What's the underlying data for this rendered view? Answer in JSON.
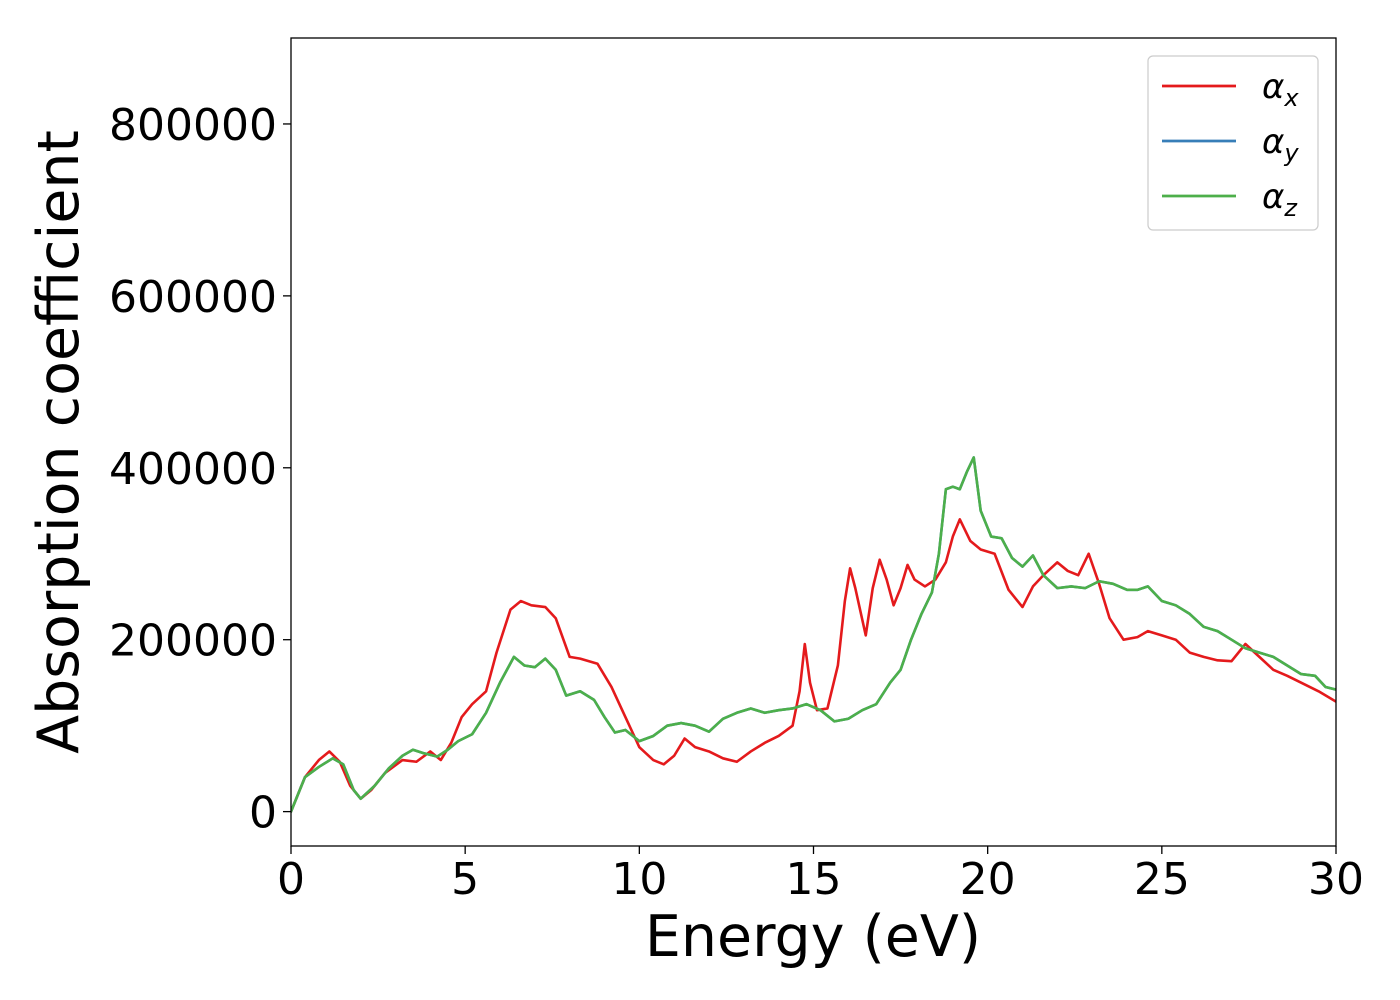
{
  "chart_data": {
    "type": "line",
    "title": "",
    "xlabel": "Energy (eV)",
    "ylabel": "Absorption coefficient",
    "xlim": [
      0,
      30
    ],
    "ylim": [
      -40000,
      900000
    ],
    "xticks": [
      0,
      5,
      10,
      15,
      20,
      25,
      30
    ],
    "xtick_labels": [
      "0",
      "5",
      "10",
      "15",
      "20",
      "25",
      "30"
    ],
    "yticks": [
      0,
      200000,
      400000,
      600000,
      800000
    ],
    "ytick_labels": [
      "0",
      "200000",
      "400000",
      "600000",
      "800000"
    ],
    "grid": false,
    "legend_position": "top-right",
    "series": [
      {
        "name": "α",
        "subscript": "x",
        "color": "#e41a1c",
        "x": [
          0,
          0.4,
          0.8,
          1.1,
          1.4,
          1.7,
          2.0,
          2.3,
          2.7,
          3.2,
          3.6,
          4.0,
          4.3,
          4.6,
          4.9,
          5.2,
          5.6,
          5.9,
          6.3,
          6.6,
          6.9,
          7.3,
          7.6,
          8.0,
          8.3,
          8.8,
          9.2,
          9.6,
          10.0,
          10.4,
          10.7,
          11.0,
          11.3,
          11.6,
          12.0,
          12.4,
          12.8,
          13.2,
          13.6,
          14.0,
          14.4,
          14.6,
          14.75,
          14.9,
          15.1,
          15.4,
          15.7,
          15.9,
          16.05,
          16.2,
          16.5,
          16.7,
          16.9,
          17.1,
          17.3,
          17.5,
          17.7,
          17.9,
          18.2,
          18.5,
          18.8,
          19.0,
          19.2,
          19.5,
          19.8,
          20.2,
          20.6,
          21.0,
          21.3,
          21.6,
          22.0,
          22.3,
          22.6,
          22.9,
          23.2,
          23.5,
          23.9,
          24.3,
          24.6,
          25.0,
          25.4,
          25.8,
          26.2,
          26.6,
          27.0,
          27.4,
          27.8,
          28.2,
          28.6,
          29.0,
          29.5,
          30.0
        ],
        "y": [
          0,
          40000,
          60000,
          70000,
          58000,
          30000,
          15000,
          25000,
          45000,
          60000,
          58000,
          70000,
          60000,
          80000,
          110000,
          125000,
          140000,
          185000,
          235000,
          245000,
          240000,
          238000,
          225000,
          180000,
          178000,
          172000,
          145000,
          110000,
          75000,
          60000,
          55000,
          65000,
          85000,
          75000,
          70000,
          62000,
          58000,
          70000,
          80000,
          88000,
          100000,
          140000,
          195000,
          150000,
          118000,
          120000,
          170000,
          245000,
          283000,
          260000,
          205000,
          260000,
          293000,
          270000,
          240000,
          260000,
          287000,
          270000,
          262000,
          270000,
          290000,
          320000,
          340000,
          315000,
          305000,
          300000,
          258000,
          238000,
          262000,
          275000,
          290000,
          280000,
          275000,
          300000,
          265000,
          225000,
          200000,
          203000,
          210000,
          205000,
          200000,
          185000,
          180000,
          176000,
          175000,
          195000,
          180000,
          165000,
          158000,
          150000,
          140000,
          128000
        ]
      },
      {
        "name": "α",
        "subscript": "y",
        "color": "#377eb8",
        "x": [
          0,
          0.4,
          0.8,
          1.2,
          1.5,
          1.8,
          2.0,
          2.4,
          2.8,
          3.2,
          3.5,
          3.8,
          4.2,
          4.5,
          4.8,
          5.2,
          5.6,
          6.0,
          6.4,
          6.7,
          7.0,
          7.3,
          7.6,
          7.9,
          8.3,
          8.7,
          9.0,
          9.3,
          9.6,
          10.0,
          10.4,
          10.8,
          11.2,
          11.6,
          12.0,
          12.4,
          12.8,
          13.2,
          13.6,
          14.0,
          14.4,
          14.8,
          15.2,
          15.6,
          16.0,
          16.4,
          16.8,
          17.2,
          17.5,
          17.8,
          18.1,
          18.4,
          18.6,
          18.8,
          19.0,
          19.2,
          19.4,
          19.6,
          19.8,
          20.1,
          20.4,
          20.7,
          21.0,
          21.3,
          21.6,
          22.0,
          22.4,
          22.8,
          23.2,
          23.6,
          24.0,
          24.3,
          24.6,
          25.0,
          25.4,
          25.8,
          26.2,
          26.6,
          27.0,
          27.4,
          27.8,
          28.2,
          28.6,
          29.0,
          29.4,
          29.7,
          30.0
        ],
        "y": [
          0,
          40000,
          52000,
          62000,
          55000,
          25000,
          15000,
          30000,
          50000,
          65000,
          72000,
          68000,
          64000,
          72000,
          82000,
          90000,
          115000,
          150000,
          180000,
          170000,
          168000,
          178000,
          165000,
          135000,
          140000,
          130000,
          110000,
          92000,
          95000,
          82000,
          88000,
          100000,
          103000,
          100000,
          93000,
          108000,
          115000,
          120000,
          115000,
          118000,
          120000,
          125000,
          118000,
          105000,
          108000,
          118000,
          125000,
          150000,
          165000,
          200000,
          230000,
          255000,
          300000,
          375000,
          378000,
          375000,
          395000,
          412000,
          350000,
          320000,
          318000,
          295000,
          285000,
          298000,
          275000,
          260000,
          262000,
          260000,
          268000,
          265000,
          258000,
          258000,
          262000,
          245000,
          240000,
          230000,
          215000,
          210000,
          200000,
          190000,
          185000,
          180000,
          170000,
          160000,
          158000,
          145000,
          142000
        ]
      },
      {
        "name": "α",
        "subscript": "z",
        "color": "#4daf4a",
        "x": [
          0,
          0.4,
          0.8,
          1.2,
          1.5,
          1.8,
          2.0,
          2.4,
          2.8,
          3.2,
          3.5,
          3.8,
          4.2,
          4.5,
          4.8,
          5.2,
          5.6,
          6.0,
          6.4,
          6.7,
          7.0,
          7.3,
          7.6,
          7.9,
          8.3,
          8.7,
          9.0,
          9.3,
          9.6,
          10.0,
          10.4,
          10.8,
          11.2,
          11.6,
          12.0,
          12.4,
          12.8,
          13.2,
          13.6,
          14.0,
          14.4,
          14.8,
          15.2,
          15.6,
          16.0,
          16.4,
          16.8,
          17.2,
          17.5,
          17.8,
          18.1,
          18.4,
          18.6,
          18.8,
          19.0,
          19.2,
          19.4,
          19.6,
          19.8,
          20.1,
          20.4,
          20.7,
          21.0,
          21.3,
          21.6,
          22.0,
          22.4,
          22.8,
          23.2,
          23.6,
          24.0,
          24.3,
          24.6,
          25.0,
          25.4,
          25.8,
          26.2,
          26.6,
          27.0,
          27.4,
          27.8,
          28.2,
          28.6,
          29.0,
          29.4,
          29.7,
          30.0
        ],
        "y": [
          0,
          40000,
          52000,
          62000,
          55000,
          25000,
          15000,
          30000,
          50000,
          65000,
          72000,
          68000,
          64000,
          72000,
          82000,
          90000,
          115000,
          150000,
          180000,
          170000,
          168000,
          178000,
          165000,
          135000,
          140000,
          130000,
          110000,
          92000,
          95000,
          82000,
          88000,
          100000,
          103000,
          100000,
          93000,
          108000,
          115000,
          120000,
          115000,
          118000,
          120000,
          125000,
          118000,
          105000,
          108000,
          118000,
          125000,
          150000,
          165000,
          200000,
          230000,
          255000,
          300000,
          375000,
          378000,
          375000,
          395000,
          412000,
          350000,
          320000,
          318000,
          295000,
          285000,
          298000,
          275000,
          260000,
          262000,
          260000,
          268000,
          265000,
          258000,
          258000,
          262000,
          245000,
          240000,
          230000,
          215000,
          210000,
          200000,
          190000,
          185000,
          180000,
          170000,
          160000,
          158000,
          145000,
          142000
        ]
      }
    ]
  }
}
